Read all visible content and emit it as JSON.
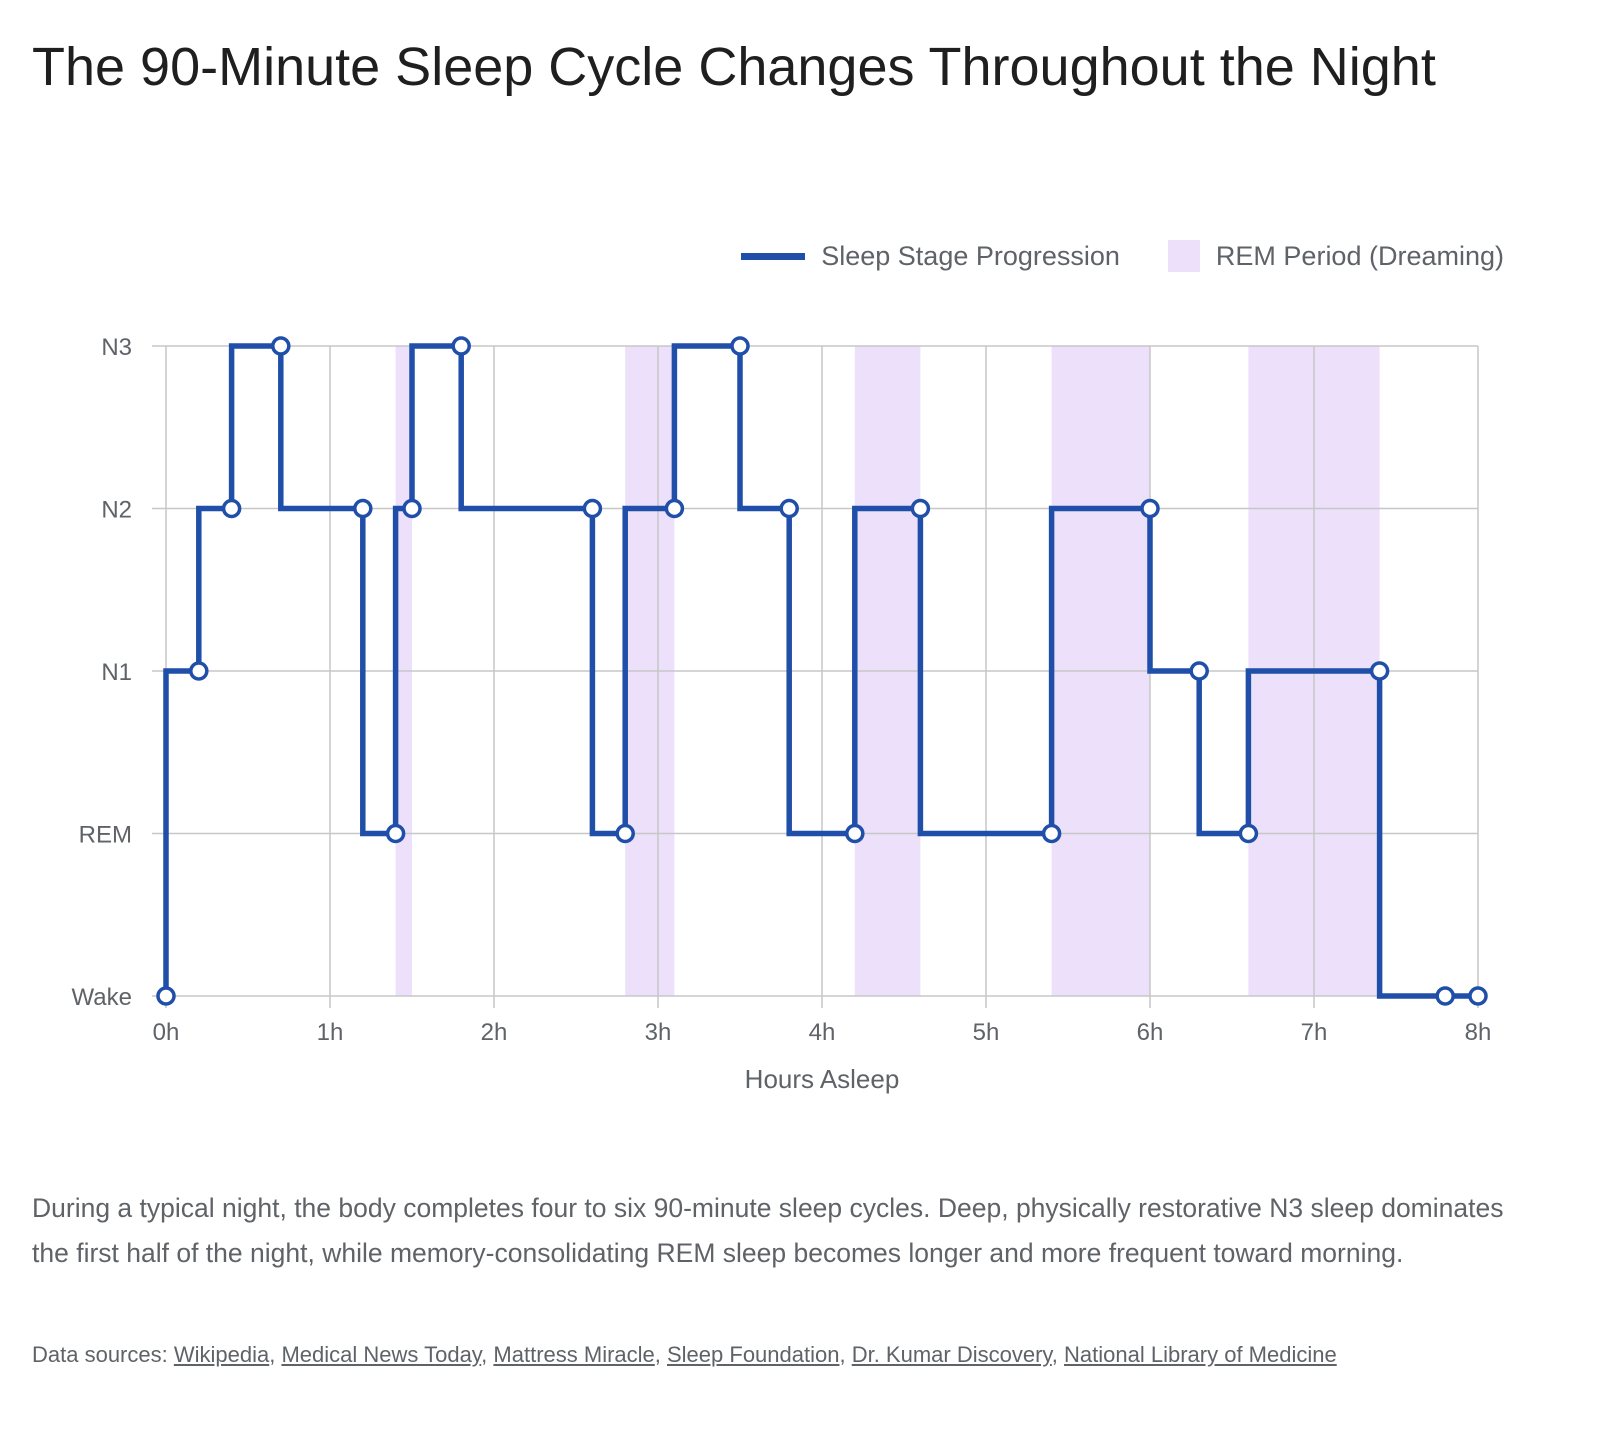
{
  "title": "The 90-Minute Sleep Cycle Changes Throughout the Night",
  "legend": {
    "line_label": "Sleep Stage Progression",
    "band_label": "REM Period (Dreaming)"
  },
  "colors": {
    "line": "#1f4fa8",
    "rem_band": "#ece0fb",
    "grid": "#c7c7c7",
    "text": "#5f6368"
  },
  "chart_data": {
    "type": "line",
    "step": true,
    "xlabel": "Hours Asleep",
    "ylabel": "",
    "xlim": [
      0,
      8
    ],
    "x_ticks": [
      0,
      1,
      2,
      3,
      4,
      5,
      6,
      7,
      8
    ],
    "x_tick_labels": [
      "0h",
      "1h",
      "2h",
      "3h",
      "4h",
      "5h",
      "6h",
      "7h",
      "8h"
    ],
    "y_categories": [
      "Wake",
      "REM",
      "N1",
      "N2",
      "N3"
    ],
    "grid": true,
    "legend_position": "top-right",
    "series": [
      {
        "name": "Sleep Stage Progression",
        "points": [
          {
            "x": 0,
            "y": "Wake"
          },
          {
            "x": 0.2,
            "y": "N1"
          },
          {
            "x": 0.4,
            "y": "N2"
          },
          {
            "x": 0.7,
            "y": "N3"
          },
          {
            "x": 1.2,
            "y": "N2"
          },
          {
            "x": 1.4,
            "y": "REM"
          },
          {
            "x": 1.5,
            "y": "N2"
          },
          {
            "x": 1.8,
            "y": "N3"
          },
          {
            "x": 2.6,
            "y": "N2"
          },
          {
            "x": 2.8,
            "y": "REM"
          },
          {
            "x": 3.1,
            "y": "N2"
          },
          {
            "x": 3.5,
            "y": "N3"
          },
          {
            "x": 3.8,
            "y": "N2"
          },
          {
            "x": 4.2,
            "y": "REM"
          },
          {
            "x": 4.6,
            "y": "N2"
          },
          {
            "x": 5.4,
            "y": "REM"
          },
          {
            "x": 6.0,
            "y": "N2"
          },
          {
            "x": 6.3,
            "y": "N1"
          },
          {
            "x": 6.6,
            "y": "REM"
          },
          {
            "x": 7.4,
            "y": "N1"
          },
          {
            "x": 7.8,
            "y": "Wake"
          },
          {
            "x": 8.0,
            "y": "Wake"
          }
        ]
      },
      {
        "name": "REM Period (Dreaming)",
        "type": "band",
        "ranges": [
          [
            1.4,
            1.5
          ],
          [
            2.8,
            3.1
          ],
          [
            4.2,
            4.6
          ],
          [
            5.4,
            6.0
          ],
          [
            6.6,
            7.4
          ]
        ]
      }
    ]
  },
  "description": "During a typical night, the body completes four to six 90-minute sleep cycles. Deep, physically restorative N3 sleep dominates the first half of the night, while memory-consolidating REM sleep becomes longer and more frequent toward morning.",
  "sources": {
    "prefix": "Data sources: ",
    "links": [
      "Wikipedia",
      "Medical News Today",
      "Mattress Miracle",
      "Sleep Foundation",
      "Dr. Kumar Discovery",
      "National Library of Medicine"
    ]
  }
}
